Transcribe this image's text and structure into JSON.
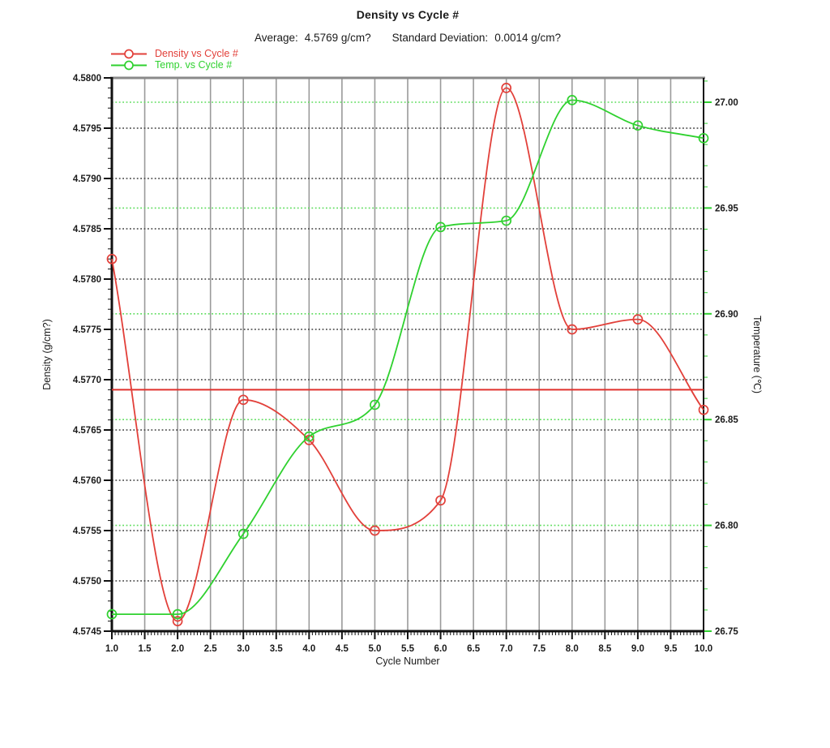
{
  "title": "Density vs Cycle #",
  "stats": {
    "average_label": "Average:",
    "average_value": "4.5769 g/cm?",
    "sd_label": "Standard Deviation:",
    "sd_value": "0.0014 g/cm?"
  },
  "legend": [
    {
      "label": "Density vs Cycle #",
      "color": "#e2403a",
      "marker": "open-circle-line"
    },
    {
      "label": "Temp. vs Cycle #",
      "color": "#2fd12f",
      "marker": "open-circle-line"
    }
  ],
  "chart_data": {
    "type": "line",
    "title": "Density vs Cycle #",
    "xlabel": "Cycle Number",
    "ylabel_left": "Density (g/cm?)",
    "ylabel_right": "Temperature (℃)",
    "x": [
      1,
      2,
      3,
      4,
      5,
      6,
      7,
      8,
      9,
      10
    ],
    "series": [
      {
        "name": "Density vs Cycle #",
        "axis": "left",
        "color": "#e2403a",
        "values": [
          4.5782,
          4.5746,
          4.5768,
          4.5764,
          4.5755,
          4.5758,
          4.5799,
          4.5775,
          4.5776,
          4.5767
        ]
      },
      {
        "name": "Temp. vs Cycle #",
        "axis": "right",
        "color": "#2fd12f",
        "values": [
          26.758,
          26.758,
          26.796,
          26.842,
          26.857,
          26.941,
          26.944,
          27.001,
          26.989,
          26.983
        ]
      }
    ],
    "average_line": {
      "value": 4.5769,
      "color": "#e0322e"
    },
    "x_axis": {
      "min": 1,
      "max": 10,
      "major_step": 0.5,
      "minor_step": 0.05,
      "tick_labels": [
        "1.0",
        "1.5",
        "2.0",
        "2.5",
        "3.0",
        "3.5",
        "4.0",
        "4.5",
        "5.0",
        "5.5",
        "6.0",
        "6.5",
        "7.0",
        "7.5",
        "8.0",
        "8.5",
        "9.0",
        "9.5",
        "10.0"
      ]
    },
    "left_axis": {
      "min": 4.5745,
      "max": 4.58,
      "major_step": 0.0005,
      "minor_step": 0.0001,
      "tick_labels": [
        "4.5800",
        "4.5795",
        "4.5790",
        "4.5785",
        "4.5780",
        "4.5775",
        "4.5770",
        "4.5765",
        "4.5760",
        "4.5755",
        "4.5750",
        "4.5745"
      ]
    },
    "right_axis": {
      "min": 26.75,
      "top_value": 27.0115,
      "major_step": 0.05,
      "minor_step": 0.01,
      "tick_labels": [
        "27.00",
        "26.95",
        "26.90",
        "26.85",
        "26.80",
        "26.75"
      ]
    },
    "grid": {
      "vertical_color": "#9a9a9a",
      "left_grid_color": "#3c3c3c",
      "right_grid_color": "#5ddd5d",
      "frame_top_color": "#8a8a8a",
      "frame_color": "#111111",
      "legend_position": "top-left"
    }
  }
}
